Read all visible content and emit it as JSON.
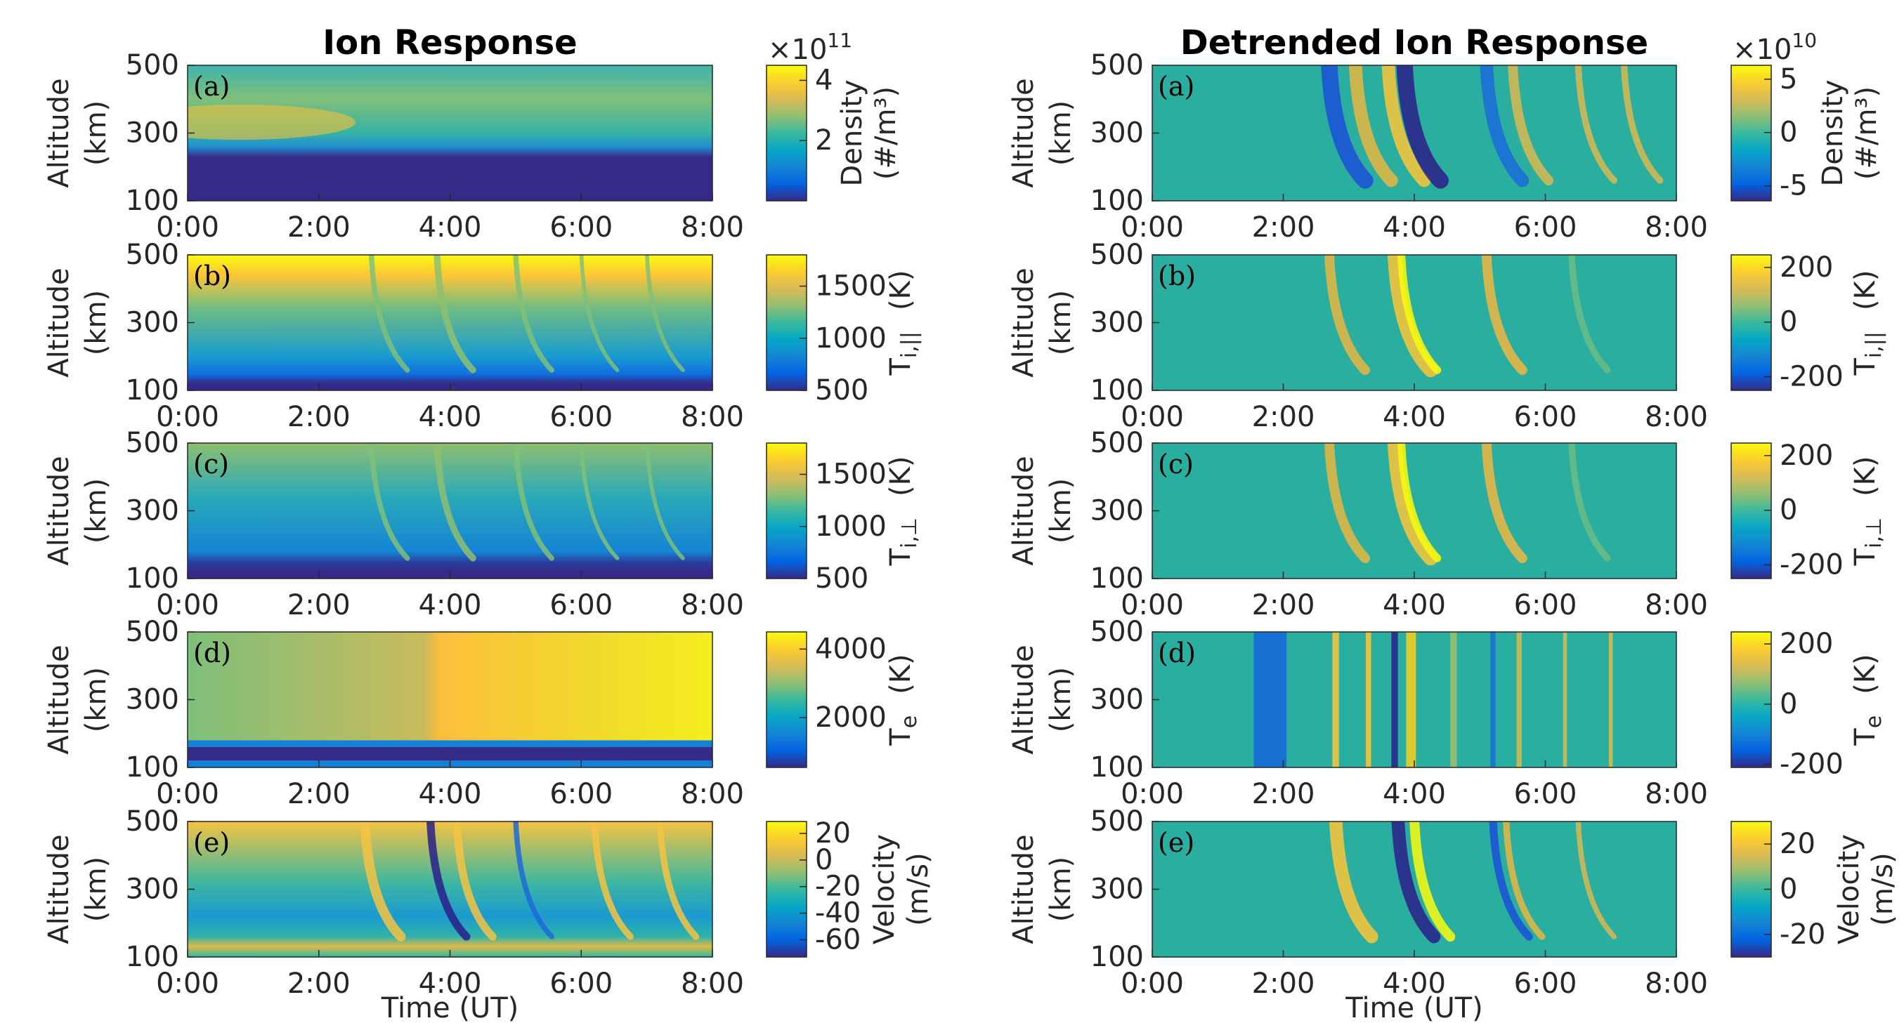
{
  "chart_data": [
    {
      "type": "heatmap",
      "title": "Ion Response",
      "label": "(a)",
      "ylabel": [
        "Altitude",
        "(km)"
      ],
      "xlim": [
        0,
        8
      ],
      "xticks": [
        {
          "value": 0,
          "label": "0:00"
        },
        {
          "value": 2,
          "label": "2:00"
        },
        {
          "value": 4,
          "label": "4:00"
        },
        {
          "value": 6,
          "label": "6:00"
        },
        {
          "value": 8,
          "label": "8:00"
        }
      ],
      "ylim": [
        100,
        500
      ],
      "yticks": [
        100,
        300,
        500
      ],
      "colormap": "parula",
      "clim": [
        0,
        4.5
      ],
      "cticks": [
        2,
        4
      ],
      "cscale": {
        "base": "×10",
        "exp": "11"
      },
      "clabel": [
        [
          {
            "text": "Density"
          }
        ],
        [
          {
            "text": "(#/m³)"
          }
        ]
      ]
    },
    {
      "type": "heatmap",
      "label": "(b)",
      "ylabel": [
        "Altitude",
        "(km)"
      ],
      "xlim": [
        0,
        8
      ],
      "xticks": [
        {
          "value": 0,
          "label": "0:00"
        },
        {
          "value": 2,
          "label": "2:00"
        },
        {
          "value": 4,
          "label": "4:00"
        },
        {
          "value": 6,
          "label": "6:00"
        },
        {
          "value": 8,
          "label": "8:00"
        }
      ],
      "ylim": [
        100,
        500
      ],
      "yticks": [
        100,
        300,
        500
      ],
      "colormap": "parula",
      "clim": [
        500,
        1800
      ],
      "cticks": [
        500,
        1000,
        1500
      ],
      "clabel": [
        [
          {
            "text": "T"
          },
          {
            "text": "i,||",
            "sub": true
          },
          {
            "text": "(K)"
          }
        ]
      ]
    },
    {
      "type": "heatmap",
      "label": "(c)",
      "ylabel": [
        "Altitude",
        "(km)"
      ],
      "xlim": [
        0,
        8
      ],
      "xticks": [
        {
          "value": 0,
          "label": "0:00"
        },
        {
          "value": 2,
          "label": "2:00"
        },
        {
          "value": 4,
          "label": "4:00"
        },
        {
          "value": 6,
          "label": "6:00"
        },
        {
          "value": 8,
          "label": "8:00"
        }
      ],
      "ylim": [
        100,
        500
      ],
      "yticks": [
        100,
        300,
        500
      ],
      "colormap": "parula",
      "clim": [
        500,
        1800
      ],
      "cticks": [
        500,
        1000,
        1500
      ],
      "clabel": [
        [
          {
            "text": "T"
          },
          {
            "text": "i,⊥",
            "sub": true
          },
          {
            "text": "(K)"
          }
        ]
      ]
    },
    {
      "type": "heatmap",
      "label": "(d)",
      "ylabel": [
        "Altitude",
        "(km)"
      ],
      "xlim": [
        0,
        8
      ],
      "xticks": [
        {
          "value": 0,
          "label": "0:00"
        },
        {
          "value": 2,
          "label": "2:00"
        },
        {
          "value": 4,
          "label": "4:00"
        },
        {
          "value": 6,
          "label": "6:00"
        },
        {
          "value": 8,
          "label": "8:00"
        }
      ],
      "ylim": [
        100,
        500
      ],
      "yticks": [
        100,
        300,
        500
      ],
      "colormap": "parula",
      "clim": [
        550,
        4500
      ],
      "cticks": [
        2000,
        4000
      ],
      "clabel": [
        [
          {
            "text": "T"
          },
          {
            "text": "e",
            "sub": true
          },
          {
            "text": "(K)"
          }
        ]
      ]
    },
    {
      "type": "heatmap",
      "label": "(e)",
      "ylabel": [
        "Altitude",
        "(km)"
      ],
      "xlabel": "Time (UT)",
      "xlim": [
        0,
        8
      ],
      "xticks": [
        {
          "value": 0,
          "label": "0:00"
        },
        {
          "value": 2,
          "label": "2:00"
        },
        {
          "value": 4,
          "label": "4:00"
        },
        {
          "value": 6,
          "label": "6:00"
        },
        {
          "value": 8,
          "label": "8:00"
        }
      ],
      "ylim": [
        100,
        500
      ],
      "yticks": [
        100,
        300,
        500
      ],
      "colormap": "parula",
      "clim": [
        -73,
        29
      ],
      "cticks": [
        -60,
        -40,
        -20,
        0,
        20
      ],
      "clabel": [
        [
          {
            "text": "Velocity"
          }
        ],
        [
          {
            "text": "(m/s)"
          }
        ]
      ]
    },
    {
      "type": "heatmap",
      "title": "Detrended Ion Response",
      "label": "(a)",
      "ylabel": [
        "Altitude",
        "(km)"
      ],
      "xlim": [
        0,
        8
      ],
      "xticks": [
        {
          "value": 0,
          "label": "0:00"
        },
        {
          "value": 2,
          "label": "2:00"
        },
        {
          "value": 4,
          "label": "4:00"
        },
        {
          "value": 6,
          "label": "6:00"
        },
        {
          "value": 8,
          "label": "8:00"
        }
      ],
      "ylim": [
        100,
        500
      ],
      "yticks": [
        100,
        300,
        500
      ],
      "colormap": "parula",
      "clim": [
        -6.4,
        6.3
      ],
      "cticks": [
        -5,
        0,
        5
      ],
      "cscale": {
        "base": "×10",
        "exp": "10"
      },
      "clabel": [
        [
          {
            "text": "Density"
          }
        ],
        [
          {
            "text": "(#/m³)"
          }
        ]
      ]
    },
    {
      "type": "heatmap",
      "label": "(b)",
      "ylabel": [
        "Altitude",
        "(km)"
      ],
      "xlim": [
        0,
        8
      ],
      "xticks": [
        {
          "value": 0,
          "label": "0:00"
        },
        {
          "value": 2,
          "label": "2:00"
        },
        {
          "value": 4,
          "label": "4:00"
        },
        {
          "value": 6,
          "label": "6:00"
        },
        {
          "value": 8,
          "label": "8:00"
        }
      ],
      "ylim": [
        100,
        500
      ],
      "yticks": [
        100,
        300,
        500
      ],
      "colormap": "parula",
      "clim": [
        -250,
        246
      ],
      "cticks": [
        -200,
        0,
        200
      ],
      "clabel": [
        [
          {
            "text": "T"
          },
          {
            "text": "i,||",
            "sub": true
          },
          {
            "text": "(K)"
          }
        ]
      ]
    },
    {
      "type": "heatmap",
      "label": "(c)",
      "ylabel": [
        "Altitude",
        "(km)"
      ],
      "xlim": [
        0,
        8
      ],
      "xticks": [
        {
          "value": 0,
          "label": "0:00"
        },
        {
          "value": 2,
          "label": "2:00"
        },
        {
          "value": 4,
          "label": "4:00"
        },
        {
          "value": 6,
          "label": "6:00"
        },
        {
          "value": 8,
          "label": "8:00"
        }
      ],
      "ylim": [
        100,
        500
      ],
      "yticks": [
        100,
        300,
        500
      ],
      "colormap": "parula",
      "clim": [
        -250,
        246
      ],
      "cticks": [
        -200,
        0,
        200
      ],
      "clabel": [
        [
          {
            "text": "T"
          },
          {
            "text": "i,⊥",
            "sub": true
          },
          {
            "text": "(K)"
          }
        ]
      ]
    },
    {
      "type": "heatmap",
      "label": "(d)",
      "ylabel": [
        "Altitude",
        "(km)"
      ],
      "xlim": [
        0,
        8
      ],
      "xticks": [
        {
          "value": 0,
          "label": "0:00"
        },
        {
          "value": 2,
          "label": "2:00"
        },
        {
          "value": 4,
          "label": "4:00"
        },
        {
          "value": 6,
          "label": "6:00"
        },
        {
          "value": 8,
          "label": "8:00"
        }
      ],
      "ylim": [
        100,
        500
      ],
      "yticks": [
        100,
        300,
        500
      ],
      "colormap": "parula",
      "clim": [
        -210,
        240
      ],
      "cticks": [
        -200,
        0,
        200
      ],
      "clabel": [
        [
          {
            "text": "T"
          },
          {
            "text": "e",
            "sub": true
          },
          {
            "text": "(K)"
          }
        ]
      ]
    },
    {
      "type": "heatmap",
      "label": "(e)",
      "ylabel": [
        "Altitude",
        "(km)"
      ],
      "xlabel": "Time (UT)",
      "xlim": [
        0,
        8
      ],
      "xticks": [
        {
          "value": 0,
          "label": "0:00"
        },
        {
          "value": 2,
          "label": "2:00"
        },
        {
          "value": 4,
          "label": "4:00"
        },
        {
          "value": 6,
          "label": "6:00"
        },
        {
          "value": 8,
          "label": "8:00"
        }
      ],
      "ylim": [
        100,
        500
      ],
      "yticks": [
        100,
        300,
        500
      ],
      "colormap": "parula",
      "clim": [
        -30,
        30
      ],
      "cticks": [
        -20,
        0,
        20
      ],
      "clabel": [
        [
          {
            "text": "Velocity"
          }
        ],
        [
          {
            "text": "(m/s)"
          }
        ]
      ]
    }
  ]
}
